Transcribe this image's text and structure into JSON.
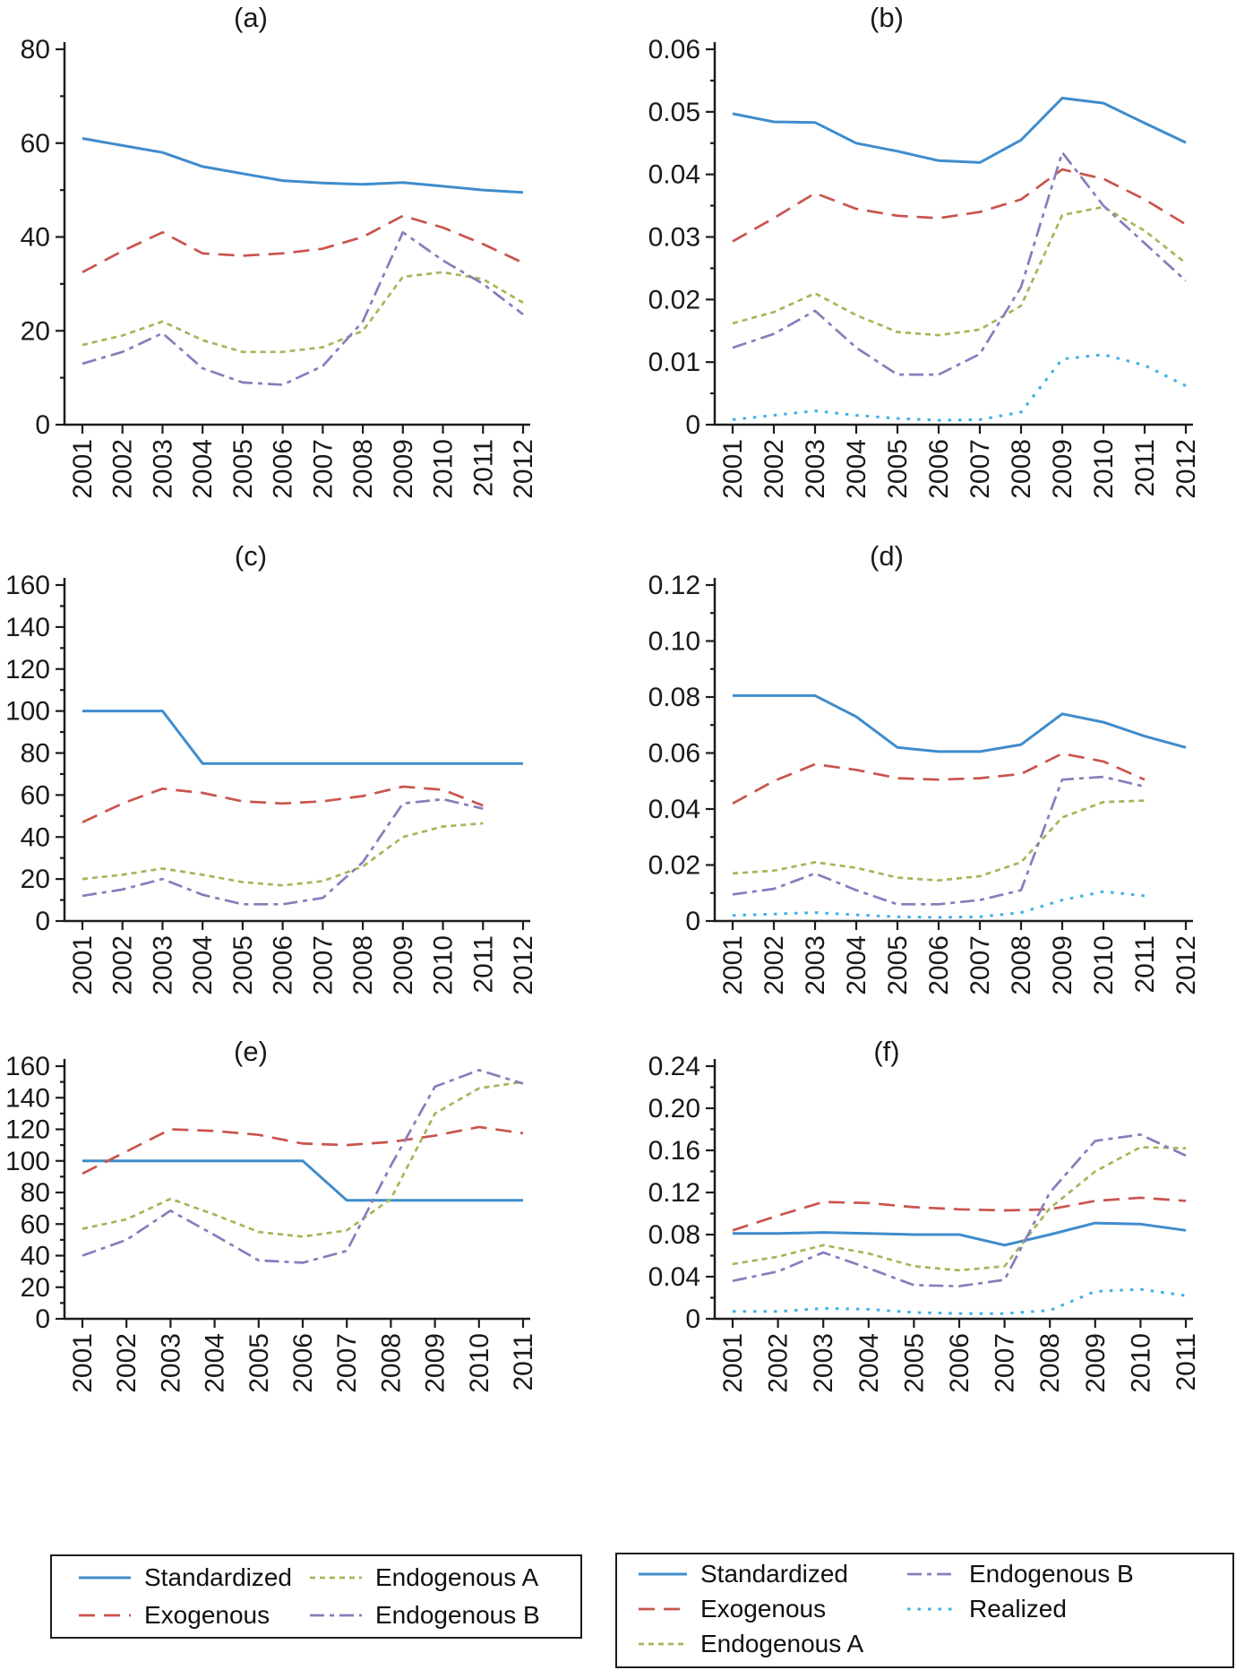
{
  "styles": {
    "standardized": {
      "label": "Standardized",
      "color": "#3f8ccc",
      "dash": "solid",
      "width": 3
    },
    "exogenous": {
      "label": "Exogenous",
      "color": "#c9544c",
      "dash": "18 10",
      "width": 2.7
    },
    "endogenousA": {
      "label": "Endogenous A",
      "color": "#a4b65a",
      "dash": "6 5",
      "width": 2.7
    },
    "endogenousB": {
      "label": "Endogenous B",
      "color": "#8b7bbc",
      "dash": "16 6 5 6",
      "width": 2.7
    },
    "realized": {
      "label": "Realized",
      "color": "#3fb0e4",
      "dash": "3.5 8",
      "width": 3
    }
  },
  "legend_left": {
    "entries": [
      "Standardized",
      "Exogenous",
      "Endogenous A",
      "Endogenous B"
    ]
  },
  "legend_right": {
    "entries": [
      "Standardized",
      "Exogenous",
      "Endogenous A",
      "Endogenous B",
      "Realized"
    ]
  },
  "chart_data": [
    {
      "id": "a",
      "type": "line",
      "title": "(a)",
      "xlabel": "",
      "ylabel": "",
      "x_labels": [
        "2001",
        "2002",
        "2003",
        "2004",
        "2005",
        "2006",
        "2007",
        "2008",
        "2009",
        "2010",
        "2011",
        "2012"
      ],
      "ylim": [
        0,
        80
      ],
      "yticks": {
        "values": [
          0,
          20,
          40,
          60,
          80
        ],
        "labels": [
          "0",
          "20",
          "40",
          "60",
          "80"
        ]
      },
      "legend_position": "none",
      "grid": false,
      "series": [
        {
          "key": "standardized",
          "name": "Standardized",
          "values": [
            61,
            59.5,
            58,
            55,
            53.5,
            52,
            51.5,
            51.2,
            51.6,
            50.8,
            50,
            49.5
          ]
        },
        {
          "key": "exogenous",
          "name": "Exogenous",
          "values": [
            32.5,
            37,
            41,
            36.5,
            36,
            36.5,
            37.5,
            40,
            44.5,
            42,
            38.5,
            34.5
          ]
        },
        {
          "key": "endogenousA",
          "name": "Endogenous A",
          "values": [
            17,
            19,
            22,
            18,
            15.5,
            15.5,
            16.5,
            20,
            31.5,
            32.5,
            31,
            26
          ]
        },
        {
          "key": "endogenousB",
          "name": "Endogenous B",
          "values": [
            13,
            15.5,
            19.5,
            12,
            9,
            8.5,
            12.5,
            22,
            41,
            35,
            30,
            23.5
          ]
        }
      ]
    },
    {
      "id": "b",
      "type": "line",
      "title": "(b)",
      "xlabel": "",
      "ylabel": "",
      "x_labels": [
        "2001",
        "2002",
        "2003",
        "2004",
        "2005",
        "2006",
        "2007",
        "2008",
        "2009",
        "2010",
        "2011",
        "2012"
      ],
      "ylim": [
        0,
        0.06
      ],
      "yticks": {
        "values": [
          0,
          0.01,
          0.02,
          0.03,
          0.04,
          0.05,
          0.06
        ],
        "labels": [
          "0",
          "0.01",
          "0.02",
          "0.03",
          "0.04",
          "0.05",
          "0.06"
        ]
      },
      "legend_position": "none",
      "grid": false,
      "series": [
        {
          "key": "standardized",
          "name": "Standardized",
          "values": [
            0.0497,
            0.0484,
            0.0483,
            0.045,
            0.0437,
            0.0422,
            0.0419,
            0.0455,
            0.0522,
            0.0514,
            0.0482,
            0.0451
          ]
        },
        {
          "key": "exogenous",
          "name": "Exogenous",
          "values": [
            0.0293,
            0.033,
            0.037,
            0.0345,
            0.0334,
            0.033,
            0.034,
            0.036,
            0.0408,
            0.0393,
            0.036,
            0.032
          ]
        },
        {
          "key": "endogenousA",
          "name": "Endogenous A",
          "values": [
            0.0162,
            0.018,
            0.021,
            0.0175,
            0.0148,
            0.0143,
            0.0152,
            0.019,
            0.0335,
            0.0348,
            0.031,
            0.0258
          ]
        },
        {
          "key": "endogenousB",
          "name": "Endogenous B",
          "values": [
            0.0123,
            0.0145,
            0.0182,
            0.0123,
            0.008,
            0.008,
            0.0113,
            0.022,
            0.0435,
            0.035,
            0.029,
            0.023
          ]
        },
        {
          "key": "realized",
          "name": "Realized",
          "values": [
            0.0008,
            0.0015,
            0.0022,
            0.0015,
            0.001,
            0.0007,
            0.0008,
            0.002,
            0.0105,
            0.0112,
            0.0095,
            0.0062
          ]
        }
      ]
    },
    {
      "id": "c",
      "type": "line",
      "title": "(c)",
      "xlabel": "",
      "ylabel": "",
      "x_labels": [
        "2001",
        "2002",
        "2003",
        "2004",
        "2005",
        "2006",
        "2007",
        "2008",
        "2009",
        "2010",
        "2011",
        "2012"
      ],
      "ylim": [
        0,
        160
      ],
      "yticks": {
        "values": [
          0,
          20,
          40,
          60,
          80,
          100,
          120,
          140,
          160
        ],
        "labels": [
          "0",
          "20",
          "40",
          "60",
          "80",
          "100",
          "120",
          "140",
          "160"
        ]
      },
      "legend_position": "none",
      "grid": false,
      "series": [
        {
          "key": "standardized",
          "name": "Standardized",
          "values": [
            100,
            100,
            100,
            75,
            75,
            75,
            75,
            75,
            75,
            75,
            75,
            75
          ]
        },
        {
          "key": "exogenous",
          "name": "Exogenous",
          "values": [
            47,
            56,
            63,
            61,
            57,
            56,
            57,
            59.5,
            64,
            62.5,
            55
          ]
        },
        {
          "key": "endogenousA",
          "name": "Endogenous A",
          "values": [
            20,
            22,
            25,
            22,
            18.5,
            17,
            19,
            26,
            40,
            45,
            46.5
          ]
        },
        {
          "key": "endogenousB",
          "name": "Endogenous B",
          "values": [
            12,
            15,
            20,
            12.5,
            8,
            8,
            11,
            28,
            56,
            58,
            53.5
          ]
        }
      ]
    },
    {
      "id": "d",
      "type": "line",
      "title": "(d)",
      "xlabel": "",
      "ylabel": "",
      "x_labels": [
        "2001",
        "2002",
        "2003",
        "2004",
        "2005",
        "2006",
        "2007",
        "2008",
        "2009",
        "2010",
        "2011",
        "2012"
      ],
      "ylim": [
        0,
        0.12
      ],
      "yticks": {
        "values": [
          0,
          0.02,
          0.04,
          0.06,
          0.08,
          0.1,
          0.12
        ],
        "labels": [
          "0",
          "0.02",
          "0.04",
          "0.06",
          "0.08",
          "0.10",
          "0.12"
        ]
      },
      "legend_position": "none",
      "grid": false,
      "series": [
        {
          "key": "standardized",
          "name": "Standardized",
          "values": [
            0.0805,
            0.0805,
            0.0805,
            0.073,
            0.062,
            0.0605,
            0.0605,
            0.063,
            0.074,
            0.071,
            0.066,
            0.062
          ]
        },
        {
          "key": "exogenous",
          "name": "Exogenous",
          "values": [
            0.042,
            0.05,
            0.056,
            0.054,
            0.051,
            0.0505,
            0.051,
            0.0525,
            0.0598,
            0.057,
            0.0505
          ]
        },
        {
          "key": "endogenousA",
          "name": "Endogenous A",
          "values": [
            0.017,
            0.018,
            0.021,
            0.019,
            0.0155,
            0.0145,
            0.016,
            0.021,
            0.037,
            0.0425,
            0.043
          ]
        },
        {
          "key": "endogenousB",
          "name": "Endogenous B",
          "values": [
            0.0095,
            0.0115,
            0.017,
            0.011,
            0.006,
            0.006,
            0.0075,
            0.011,
            0.0505,
            0.0515,
            0.048
          ]
        },
        {
          "key": "realized",
          "name": "Realized",
          "values": [
            0.002,
            0.0025,
            0.003,
            0.0022,
            0.0015,
            0.0013,
            0.0015,
            0.003,
            0.0075,
            0.0105,
            0.009
          ]
        }
      ]
    },
    {
      "id": "e",
      "type": "line",
      "title": "(e)",
      "xlabel": "",
      "ylabel": "",
      "x_labels": [
        "2001",
        "2002",
        "2003",
        "2004",
        "2005",
        "2006",
        "2007",
        "2008",
        "2009",
        "2010",
        "2011"
      ],
      "ylim": [
        0,
        160
      ],
      "yticks": {
        "values": [
          0,
          20,
          40,
          60,
          80,
          100,
          120,
          140,
          160
        ],
        "labels": [
          "0",
          "20",
          "40",
          "60",
          "80",
          "100",
          "120",
          "140",
          "160"
        ]
      },
      "legend_position": "none",
      "grid": false,
      "series": [
        {
          "key": "standardized",
          "name": "Standardized",
          "values": [
            100,
            100,
            100,
            100,
            100,
            100,
            75,
            75,
            75,
            75,
            75
          ]
        },
        {
          "key": "exogenous",
          "name": "Exogenous",
          "values": [
            92,
            106,
            120,
            119,
            116.5,
            111,
            110,
            112,
            116,
            121.5,
            117.5
          ]
        },
        {
          "key": "endogenousA",
          "name": "Endogenous A",
          "values": [
            57,
            63,
            76,
            66,
            55,
            52,
            56,
            76,
            130,
            146,
            150
          ]
        },
        {
          "key": "endogenousB",
          "name": "Endogenous B",
          "values": [
            40,
            50,
            68.5,
            53,
            37,
            35.5,
            43,
            97,
            147,
            157.5,
            149
          ]
        }
      ]
    },
    {
      "id": "f",
      "type": "line",
      "title": "(f)",
      "xlabel": "",
      "ylabel": "",
      "x_labels": [
        "2001",
        "2002",
        "2003",
        "2004",
        "2005",
        "2006",
        "2007",
        "2008",
        "2009",
        "2010",
        "2011"
      ],
      "ylim": [
        0,
        0.24
      ],
      "yticks": {
        "values": [
          0,
          0.04,
          0.08,
          0.12,
          0.16,
          0.2,
          0.24
        ],
        "labels": [
          "0",
          "0.04",
          "0.08",
          "0.12",
          "0.16",
          "0.20",
          "0.24"
        ]
      },
      "legend_position": "none",
      "grid": false,
      "series": [
        {
          "key": "standardized",
          "name": "Standardized",
          "values": [
            0.081,
            0.081,
            0.082,
            0.081,
            0.08,
            0.08,
            0.07,
            0.08,
            0.091,
            0.09,
            0.084
          ]
        },
        {
          "key": "exogenous",
          "name": "Exogenous",
          "values": [
            0.084,
            0.098,
            0.111,
            0.11,
            0.106,
            0.104,
            0.103,
            0.104,
            0.112,
            0.115,
            0.112
          ]
        },
        {
          "key": "endogenousA",
          "name": "Endogenous A",
          "values": [
            0.052,
            0.059,
            0.07,
            0.062,
            0.05,
            0.046,
            0.05,
            0.105,
            0.14,
            0.163,
            0.162
          ]
        },
        {
          "key": "endogenousB",
          "name": "Endogenous B",
          "values": [
            0.036,
            0.045,
            0.063,
            0.048,
            0.032,
            0.031,
            0.037,
            0.12,
            0.169,
            0.175,
            0.155
          ]
        },
        {
          "key": "realized",
          "name": "Realized",
          "values": [
            0.007,
            0.007,
            0.01,
            0.009,
            0.006,
            0.005,
            0.005,
            0.008,
            0.026,
            0.028,
            0.022
          ]
        }
      ]
    }
  ]
}
